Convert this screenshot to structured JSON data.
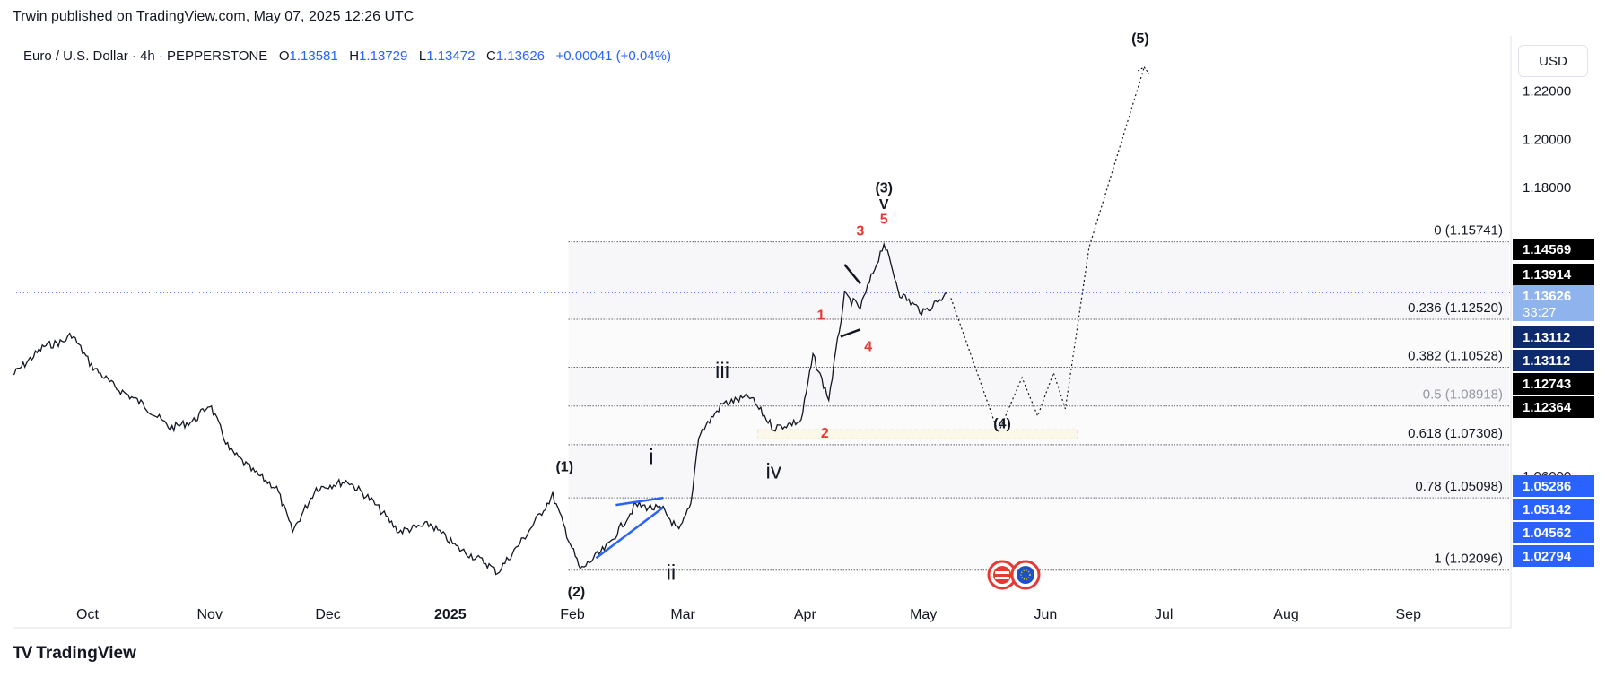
{
  "header": {
    "publisher": "Trwin published on TradingView.com, May 07, 2025 12:26 UTC"
  },
  "legend": {
    "symbol": "Euro / U.S. Dollar · 4h · PEPPERSTONE",
    "o_label": "O",
    "o_value": "1.13581",
    "h_label": "H",
    "h_value": "1.13729",
    "l_label": "L",
    "l_value": "1.13472",
    "c_label": "C",
    "c_value": "1.13626",
    "change": "+0.00041 (+0.04%)"
  },
  "currency_button": "USD",
  "footer": {
    "logo_text": "TradingView"
  },
  "colors": {
    "price_line": "#131722",
    "wave_blue": "#2962ff",
    "wave_red": "#e53935",
    "zone": "#fff3c4"
  },
  "chart_data": {
    "type": "line",
    "title": "",
    "xlabel": "",
    "ylabel": "",
    "x_ticks": [
      "Oct",
      "Nov",
      "Dec",
      "2025",
      "Feb",
      "Mar",
      "Apr",
      "May",
      "Jun",
      "Jul",
      "Aug",
      "Sep"
    ],
    "y_ticks": [
      "1.22000",
      "1.20000",
      "1.18000",
      "1.06000"
    ],
    "ylim": [
      0.997,
      1.243
    ],
    "series": [
      {
        "name": "",
        "points": [
          [
            "2024-09-12",
            1.102
          ],
          [
            "2024-09-16",
            1.108
          ],
          [
            "2024-09-20",
            1.114
          ],
          [
            "2024-09-25",
            1.116
          ],
          [
            "2024-09-27",
            1.119
          ],
          [
            "2024-10-02",
            1.106
          ],
          [
            "2024-10-08",
            1.097
          ],
          [
            "2024-10-15",
            1.09
          ],
          [
            "2024-10-22",
            1.08
          ],
          [
            "2024-10-28",
            1.083
          ],
          [
            "2024-11-01",
            1.09
          ],
          [
            "2024-11-06",
            1.071
          ],
          [
            "2024-11-12",
            1.062
          ],
          [
            "2024-11-18",
            1.055
          ],
          [
            "2024-11-22",
            1.037
          ],
          [
            "2024-11-28",
            1.055
          ],
          [
            "2024-12-06",
            1.058
          ],
          [
            "2024-12-12",
            1.05
          ],
          [
            "2024-12-19",
            1.037
          ],
          [
            "2024-12-27",
            1.04
          ],
          [
            "2025-01-03",
            1.03
          ],
          [
            "2025-01-10",
            1.024
          ],
          [
            "2025-01-13",
            1.02
          ],
          [
            "2025-01-20",
            1.035
          ],
          [
            "2025-01-27",
            1.052
          ],
          [
            "2025-01-31",
            1.034
          ],
          [
            "2025-02-03",
            1.021
          ],
          [
            "2025-02-10",
            1.031
          ],
          [
            "2025-02-17",
            1.048
          ],
          [
            "2025-02-24",
            1.046
          ],
          [
            "2025-02-28",
            1.037
          ],
          [
            "2025-03-03",
            1.048
          ],
          [
            "2025-03-05",
            1.077
          ],
          [
            "2025-03-11",
            1.09
          ],
          [
            "2025-03-18",
            1.093
          ],
          [
            "2025-03-24",
            1.08
          ],
          [
            "2025-03-31",
            1.083
          ],
          [
            "2025-04-03",
            1.11
          ],
          [
            "2025-04-07",
            1.092
          ],
          [
            "2025-04-11",
            1.135
          ],
          [
            "2025-04-15",
            1.13
          ],
          [
            "2025-04-21",
            1.157
          ],
          [
            "2025-04-25",
            1.136
          ],
          [
            "2025-05-01",
            1.128
          ],
          [
            "2025-05-07",
            1.136
          ]
        ]
      }
    ],
    "fibonacci": [
      {
        "ratio": "0",
        "price": 1.15741,
        "label": "0 (1.15741)"
      },
      {
        "ratio": "0.236",
        "price": 1.1252,
        "label": "0.236 (1.12520)"
      },
      {
        "ratio": "0.382",
        "price": 1.10528,
        "label": "0.382 (1.10528)"
      },
      {
        "ratio": "0.5",
        "price": 1.08918,
        "label": "0.5 (1.08918)"
      },
      {
        "ratio": "0.618",
        "price": 1.07308,
        "label": "0.618 (1.07308)"
      },
      {
        "ratio": "0.78",
        "price": 1.05098,
        "label": "0.78 (1.05098)"
      },
      {
        "ratio": "1",
        "price": 1.02096,
        "label": "1 (1.02096)"
      }
    ],
    "price_badges": [
      {
        "text": "1.14569",
        "style": "black"
      },
      {
        "text": "1.13914",
        "style": "black"
      },
      {
        "text": "1.13626",
        "style": "current",
        "sub": "33:27"
      },
      {
        "text": "1.13112",
        "style": "navy"
      },
      {
        "text": "1.13112",
        "style": "navy"
      },
      {
        "text": "1.12743",
        "style": "black"
      },
      {
        "text": "1.12364",
        "style": "black"
      },
      {
        "text": "1.05286",
        "style": "blue"
      },
      {
        "text": "1.05142",
        "style": "blue"
      },
      {
        "text": "1.04562",
        "style": "blue"
      },
      {
        "text": "1.02794",
        "style": "blue"
      }
    ],
    "wave_labels": [
      {
        "text": "(1)",
        "date": "2025-01-30",
        "price": 1.062,
        "color": "black"
      },
      {
        "text": "(2)",
        "date": "2025-02-02",
        "price": 1.01,
        "color": "black"
      },
      {
        "text": "(3)",
        "date": "2025-04-21",
        "price": 1.178,
        "color": "black"
      },
      {
        "text": "V",
        "date": "2025-04-21",
        "price": 1.171,
        "color": "black"
      },
      {
        "text": "(4)",
        "date": "2025-05-21",
        "price": 1.08,
        "color": "black"
      },
      {
        "text": "(5)",
        "date": "2025-06-25",
        "price": 1.24,
        "color": "black"
      },
      {
        "text": "i",
        "date": "2025-02-21",
        "price": 1.065,
        "color": "black"
      },
      {
        "text": "ii",
        "date": "2025-02-26",
        "price": 1.017,
        "color": "black"
      },
      {
        "text": "iii",
        "date": "2025-03-11",
        "price": 1.101,
        "color": "black"
      },
      {
        "text": "iv",
        "date": "2025-03-24",
        "price": 1.059,
        "color": "black"
      },
      {
        "text": "1",
        "date": "2025-04-05",
        "price": 1.125,
        "color": "red"
      },
      {
        "text": "2",
        "date": "2025-04-06",
        "price": 1.076,
        "color": "red"
      },
      {
        "text": "3",
        "date": "2025-04-15",
        "price": 1.16,
        "color": "red"
      },
      {
        "text": "4",
        "date": "2025-04-17",
        "price": 1.112,
        "color": "red"
      },
      {
        "text": "5",
        "date": "2025-04-21",
        "price": 1.165,
        "color": "red"
      }
    ],
    "projection": [
      [
        "2025-05-08",
        1.134
      ],
      [
        "2025-05-20",
        1.078
      ],
      [
        "2025-05-26",
        1.101
      ],
      [
        "2025-05-30",
        1.085
      ],
      [
        "2025-06-03",
        1.103
      ],
      [
        "2025-06-06",
        1.088
      ],
      [
        "2025-06-12",
        1.155
      ],
      [
        "2025-06-26",
        1.23
      ]
    ]
  }
}
